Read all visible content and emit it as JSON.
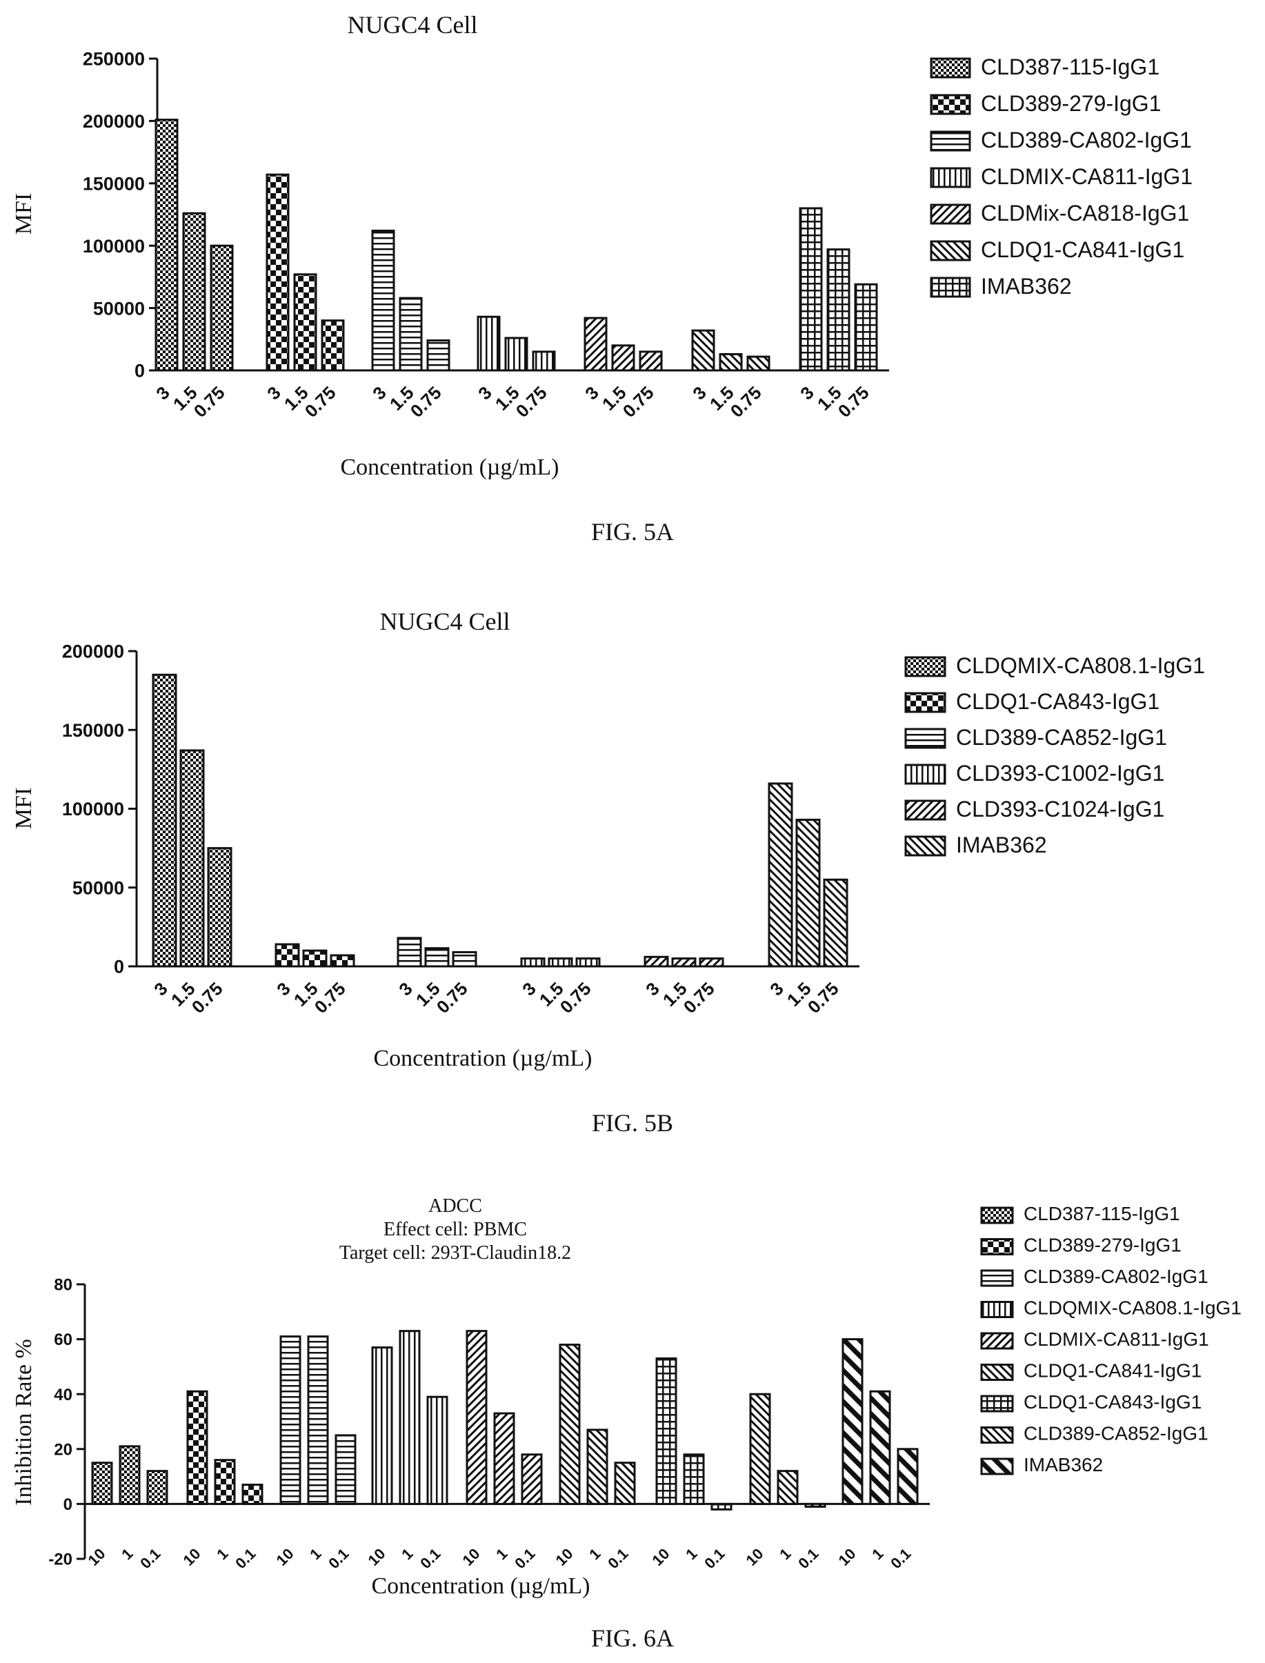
{
  "figures": [
    {
      "caption": "FIG. 5A",
      "chart_data": {
        "type": "bar",
        "title": "NUGC4 Cell",
        "xlabel": "Concentration (µg/mL)",
        "ylabel": "MFI",
        "ylim": [
          0,
          250000
        ],
        "yticks": [
          "0",
          "50000",
          "100000",
          "150000",
          "200000",
          "250000"
        ],
        "categories": [
          "3",
          "1.5",
          "0.75"
        ],
        "legend_position": "right",
        "series": [
          {
            "name": "CLD387-115-IgG1",
            "values": [
              201000,
              126000,
              100000
            ]
          },
          {
            "name": "CLD389-279-IgG1",
            "values": [
              157000,
              77000,
              40000
            ]
          },
          {
            "name": "CLD389-CA802-IgG1",
            "values": [
              112000,
              58000,
              24000
            ]
          },
          {
            "name": "CLDMIX-CA811-IgG1",
            "values": [
              43000,
              26000,
              15000
            ]
          },
          {
            "name": "CLDMix-CA818-IgG1",
            "values": [
              42000,
              20000,
              15000
            ]
          },
          {
            "name": "CLDQ1-CA841-IgG1",
            "values": [
              32000,
              13000,
              11000
            ]
          },
          {
            "name": "IMAB362",
            "values": [
              130000,
              97000,
              69000
            ]
          }
        ]
      }
    },
    {
      "caption": "FIG. 5B",
      "chart_data": {
        "type": "bar",
        "title": "NUGC4 Cell",
        "xlabel": "Concentration (µg/mL)",
        "ylabel": "MFI",
        "ylim": [
          0,
          200000
        ],
        "yticks": [
          "0",
          "50000",
          "100000",
          "150000",
          "200000"
        ],
        "categories": [
          "3",
          "1.5",
          "0.75"
        ],
        "legend_position": "right",
        "series": [
          {
            "name": "CLDQMIX-CA808.1-IgG1",
            "values": [
              185000,
              137000,
              75000
            ]
          },
          {
            "name": "CLDQ1-CA843-IgG1",
            "values": [
              14000,
              10000,
              7000
            ]
          },
          {
            "name": "CLD389-CA852-IgG1",
            "values": [
              18000,
              11500,
              9000
            ]
          },
          {
            "name": "CLD393-C1002-IgG1",
            "values": [
              5000,
              5000,
              5000
            ]
          },
          {
            "name": "CLD393-C1024-IgG1",
            "values": [
              6000,
              5000,
              5000
            ]
          },
          {
            "name": "IMAB362",
            "values": [
              116000,
              93000,
              55000
            ]
          }
        ]
      }
    },
    {
      "caption": "FIG. 6A",
      "chart_data": {
        "type": "bar",
        "title": "ADCC",
        "subtitle": [
          "Effect cell: PBMC",
          "Target cell: 293T-Claudin18.2"
        ],
        "xlabel": "Concentration (µg/mL)",
        "ylabel": "Inhibition Rate %",
        "ylim": [
          -20,
          80
        ],
        "yticks": [
          "-20",
          "0",
          "20",
          "40",
          "60",
          "80"
        ],
        "categories": [
          "10",
          "1",
          "0.1"
        ],
        "legend_position": "right",
        "series": [
          {
            "name": "CLD387-115-IgG1",
            "values": [
              15,
              21,
              12
            ]
          },
          {
            "name": "CLD389-279-IgG1",
            "values": [
              41,
              16,
              7
            ]
          },
          {
            "name": "CLD389-CA802-IgG1",
            "values": [
              61,
              61,
              25
            ]
          },
          {
            "name": "CLDQMIX-CA808.1-IgG1",
            "values": [
              57,
              63,
              39
            ]
          },
          {
            "name": "CLDMIX-CA811-IgG1",
            "values": [
              63,
              33,
              18
            ]
          },
          {
            "name": "CLDQ1-CA841-IgG1",
            "values": [
              58,
              27,
              15
            ]
          },
          {
            "name": "CLDQ1-CA843-IgG1",
            "values": [
              53,
              18,
              -2
            ]
          },
          {
            "name": "CLD389-CA852-IgG1",
            "values": [
              40,
              12,
              -1
            ]
          },
          {
            "name": "IMAB362",
            "values": [
              60,
              41,
              20
            ]
          }
        ]
      }
    }
  ]
}
